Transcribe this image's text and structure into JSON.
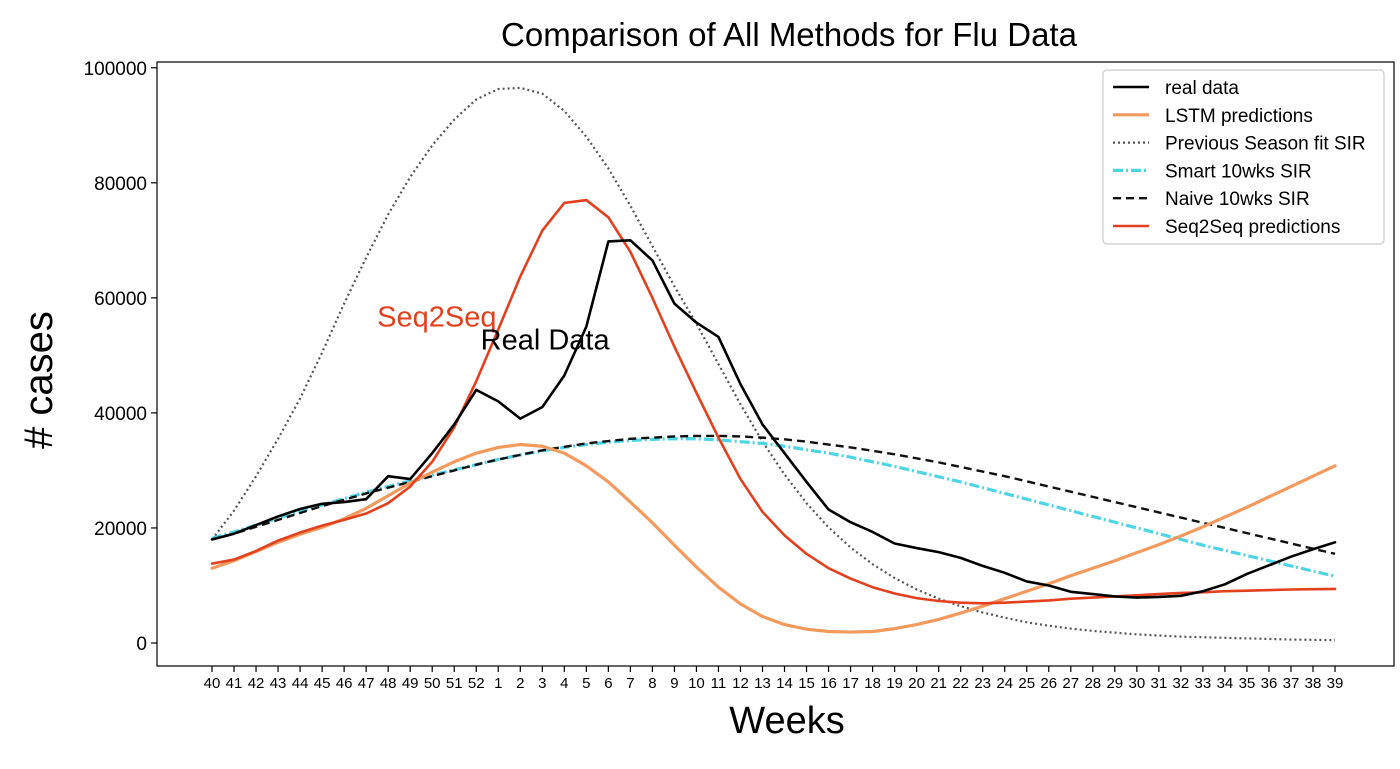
{
  "chart_data": {
    "type": "line",
    "title": "Comparison of All Methods for Flu Data",
    "xlabel": "Weeks",
    "ylabel": "# cases",
    "ylim": [
      -4000,
      101000
    ],
    "yticks": [
      0,
      20000,
      40000,
      60000,
      80000,
      100000
    ],
    "yticklabels": [
      "0",
      "20000",
      "40000",
      "60000",
      "80000",
      "100000"
    ],
    "categories": [
      "40",
      "41",
      "42",
      "43",
      "44",
      "45",
      "46",
      "47",
      "48",
      "49",
      "50",
      "51",
      "52",
      "1",
      "2",
      "3",
      "4",
      "5",
      "6",
      "7",
      "8",
      "9",
      "10",
      "11",
      "12",
      "13",
      "14",
      "15",
      "16",
      "17",
      "18",
      "19",
      "20",
      "21",
      "22",
      "23",
      "24",
      "25",
      "26",
      "27",
      "28",
      "29",
      "30",
      "31",
      "32",
      "33",
      "34",
      "35",
      "36",
      "37",
      "38",
      "39"
    ],
    "legend_position": "top-right",
    "legend": [
      {
        "label": "real data",
        "series": 0
      },
      {
        "label": "LSTM predictions",
        "series": 1
      },
      {
        "label": "Previous Season fit SIR",
        "series": 2
      },
      {
        "label": "Smart 10wks SIR",
        "series": 3
      },
      {
        "label": "Naive 10wks SIR",
        "series": 4
      },
      {
        "label": "Seq2Seq predictions",
        "series": 5
      }
    ],
    "annotations": [
      {
        "text": "Seq2Seq",
        "x_index": 7.5,
        "y": 55000,
        "color": "#e2401e"
      },
      {
        "text": "Real Data",
        "x_index": 12.2,
        "y": 51000,
        "color": "#000000"
      }
    ],
    "series": [
      {
        "name": "real data",
        "color": "#000000",
        "dash": "solid",
        "width": 2.6,
        "values": [
          18000,
          19000,
          20500,
          22000,
          23300,
          24200,
          24500,
          25000,
          29000,
          28500,
          33000,
          38000,
          44000,
          42000,
          39000,
          41000,
          46500,
          55000,
          69800,
          70000,
          66500,
          59000,
          55700,
          53200,
          45000,
          38000,
          33000,
          28000,
          23200,
          21000,
          19300,
          17300,
          16500,
          15800,
          14800,
          13400,
          12200,
          10700,
          10000,
          8900,
          8500,
          8100,
          7900,
          8000,
          8200,
          9000,
          10200,
          12000,
          13500,
          15000,
          16300,
          17500
        ]
      },
      {
        "name": "LSTM predictions",
        "color": "#f39a5e",
        "dash": "solid",
        "width": 3.2,
        "values": [
          13000,
          14300,
          15900,
          17500,
          18900,
          20100,
          21600,
          23400,
          25600,
          27800,
          29700,
          31500,
          33000,
          34000,
          34500,
          34200,
          33000,
          30800,
          28000,
          24500,
          20900,
          17000,
          13200,
          9700,
          6800,
          4600,
          3200,
          2400,
          2000,
          1900,
          2000,
          2500,
          3200,
          4100,
          5200,
          6400,
          7700,
          9000,
          10300,
          11700,
          13000,
          14300,
          15700,
          17100,
          18600,
          20200,
          21900,
          23600,
          25400,
          27200,
          29000,
          30800
        ]
      },
      {
        "name": "Previous Season fit SIR",
        "color": "#555555",
        "dash": "2,3",
        "width": 2.2,
        "values": [
          18000,
          23000,
          29000,
          35500,
          42500,
          50500,
          59000,
          67000,
          74500,
          81000,
          86500,
          91000,
          94500,
          96300,
          96500,
          95500,
          92500,
          88000,
          82500,
          76000,
          69000,
          62000,
          55500,
          48500,
          41500,
          35000,
          29300,
          24300,
          20100,
          16600,
          13700,
          11300,
          9300,
          7700,
          6400,
          5300,
          4400,
          3600,
          3000,
          2500,
          2100,
          1800,
          1500,
          1300,
          1100,
          1000,
          900,
          800,
          700,
          600,
          550,
          500
        ]
      },
      {
        "name": "Smart 10wks SIR",
        "color": "#4fd4e6",
        "dash": "10,3,2,3",
        "width": 3.2,
        "values": [
          18200,
          19300,
          20500,
          21700,
          22900,
          24000,
          25100,
          26200,
          27200,
          28200,
          29200,
          30100,
          31000,
          31900,
          32700,
          33400,
          34000,
          34500,
          34900,
          35200,
          35400,
          35500,
          35500,
          35300,
          35000,
          34700,
          34200,
          33600,
          33000,
          32300,
          31500,
          30700,
          29800,
          28900,
          28000,
          27000,
          26000,
          25000,
          24000,
          23000,
          22000,
          21000,
          20000,
          19000,
          18000,
          17000,
          16100,
          15200,
          14300,
          13400,
          12500,
          11600
        ]
      },
      {
        "name": "Naive 10wks SIR",
        "color": "#111111",
        "dash": "8,5",
        "width": 2.4,
        "values": [
          18000,
          19000,
          20200,
          21400,
          22600,
          23800,
          24900,
          26000,
          27000,
          28000,
          29000,
          30000,
          31000,
          31900,
          32700,
          33500,
          34100,
          34700,
          35100,
          35500,
          35700,
          35900,
          36000,
          36000,
          35900,
          35700,
          35400,
          35000,
          34500,
          34000,
          33400,
          32800,
          32100,
          31400,
          30600,
          29800,
          29000,
          28100,
          27200,
          26300,
          25400,
          24500,
          23600,
          22700,
          21800,
          20900,
          20000,
          19100,
          18200,
          17300,
          16400,
          15500
        ]
      },
      {
        "name": "Seq2Seq predictions",
        "color": "#e2401e",
        "dash": "solid",
        "width": 2.6,
        "values": [
          13800,
          14500,
          16000,
          17800,
          19200,
          20400,
          21400,
          22500,
          24300,
          27200,
          31500,
          37500,
          45500,
          54500,
          63700,
          71700,
          76500,
          77000,
          74000,
          68000,
          60000,
          51500,
          43500,
          35700,
          28500,
          22800,
          18700,
          15500,
          13000,
          11200,
          9700,
          8600,
          7800,
          7300,
          7000,
          6900,
          7000,
          7200,
          7400,
          7700,
          7900,
          8100,
          8300,
          8500,
          8700,
          8800,
          9000,
          9100,
          9200,
          9300,
          9350,
          9400
        ]
      }
    ]
  }
}
